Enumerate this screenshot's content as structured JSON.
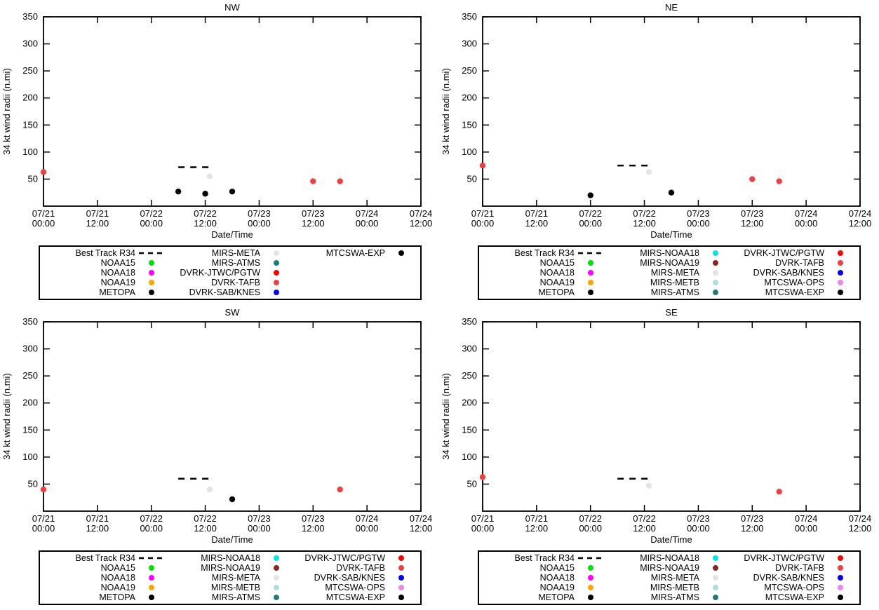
{
  "colors": {
    "NOAA15": "#00e000",
    "NOAA18": "#ff00ff",
    "NOAA19": "#ffa500",
    "METOPA": "#000000",
    "MIRS-NOAA18": "#00e5ee",
    "MIRS-NOAA19": "#8b2323",
    "MIRS-META": "#e4e4e4",
    "MIRS-METB": "#b0dcdc",
    "MIRS-ATMS": "#1e7b7b",
    "DVRK-JTWC/PGTW": "#ff0000",
    "DVRK-TAFB": "#ee4040",
    "DVRK-SAB/KNES": "#0000ee",
    "MTCSWA-OPS": "#ee82ee",
    "MTCSWA-EXP": "#000000",
    "best_track": "#000000",
    "axis": "#000000"
  },
  "axis": {
    "ylabel": "34 kt wind radii (n.mi)",
    "xlabel": "Date/Time",
    "ylim": [
      0,
      350
    ],
    "yticks": [
      50,
      100,
      150,
      200,
      250,
      300,
      350
    ],
    "xlim_hours": [
      0,
      84
    ],
    "grid": false,
    "xticks": [
      {
        "hour": 0,
        "date": "07/21",
        "time": "00:00"
      },
      {
        "hour": 12,
        "date": "07/21",
        "time": "12:00"
      },
      {
        "hour": 24,
        "date": "07/22",
        "time": "00:00"
      },
      {
        "hour": 36,
        "date": "07/22",
        "time": "12:00"
      },
      {
        "hour": 48,
        "date": "07/23",
        "time": "00:00"
      },
      {
        "hour": 60,
        "date": "07/23",
        "time": "12:00"
      },
      {
        "hour": 72,
        "date": "07/24",
        "time": "00:00"
      },
      {
        "hour": 84,
        "date": "07/24",
        "time": "12:00"
      }
    ]
  },
  "chart_data": [
    {
      "type": "scatter",
      "title": "NW",
      "ylabel": "34 kt wind radii (n.mi)",
      "xlabel": "Date/Time",
      "ylim": [
        0,
        350
      ],
      "best_track_dashed": {
        "x_hours": [
          30,
          37
        ],
        "y": 72
      },
      "points": [
        {
          "series": "DVRK-TAFB",
          "hour": 0,
          "y": 63
        },
        {
          "series": "MTCSWA-EXP",
          "hour": 30,
          "y": 27
        },
        {
          "series": "MTCSWA-EXP",
          "hour": 36,
          "y": 23
        },
        {
          "series": "MIRS-META",
          "hour": 37,
          "y": 55
        },
        {
          "series": "MTCSWA-EXP",
          "hour": 42,
          "y": 27
        },
        {
          "series": "DVRK-TAFB",
          "hour": 60,
          "y": 46
        },
        {
          "series": "DVRK-TAFB",
          "hour": 66,
          "y": 46
        }
      ],
      "legend_columns": [
        [
          {
            "label": "Best Track R34",
            "marker": "dash"
          },
          {
            "label": "NOAA15",
            "series": "NOAA15"
          },
          {
            "label": "NOAA18",
            "series": "NOAA18"
          },
          {
            "label": "NOAA19",
            "series": "NOAA19"
          },
          {
            "label": "METOPA",
            "series": "METOPA"
          }
        ],
        [
          {
            "label": "MIRS-META",
            "series": "MIRS-META"
          },
          {
            "label": "MIRS-ATMS",
            "series": "MIRS-ATMS"
          },
          {
            "label": "DVRK-JTWC/PGTW",
            "series": "DVRK-JTWC/PGTW"
          },
          {
            "label": "DVRK-TAFB",
            "series": "DVRK-TAFB"
          },
          {
            "label": "DVRK-SAB/KNES",
            "series": "DVRK-SAB/KNES"
          }
        ],
        [
          {
            "label": "MTCSWA-EXP",
            "series": "MTCSWA-EXP"
          }
        ]
      ]
    },
    {
      "type": "scatter",
      "title": "NE",
      "ylabel": "34 kt wind radii (n.mi)",
      "xlabel": "Date/Time",
      "ylim": [
        0,
        350
      ],
      "best_track_dashed": {
        "x_hours": [
          30,
          37
        ],
        "y": 75
      },
      "points": [
        {
          "series": "DVRK-TAFB",
          "hour": 0,
          "y": 75
        },
        {
          "series": "MTCSWA-EXP",
          "hour": 24,
          "y": 20
        },
        {
          "series": "MIRS-META",
          "hour": 37,
          "y": 63
        },
        {
          "series": "MTCSWA-EXP",
          "hour": 42,
          "y": 25
        },
        {
          "series": "DVRK-TAFB",
          "hour": 60,
          "y": 50
        },
        {
          "series": "DVRK-TAFB",
          "hour": 66,
          "y": 46
        }
      ],
      "legend_columns": [
        [
          {
            "label": "Best Track R34",
            "marker": "dash"
          },
          {
            "label": "NOAA15",
            "series": "NOAA15"
          },
          {
            "label": "NOAA18",
            "series": "NOAA18"
          },
          {
            "label": "NOAA19",
            "series": "NOAA19"
          },
          {
            "label": "METOPA",
            "series": "METOPA"
          }
        ],
        [
          {
            "label": "MIRS-NOAA18",
            "series": "MIRS-NOAA18"
          },
          {
            "label": "MIRS-NOAA19",
            "series": "MIRS-NOAA19"
          },
          {
            "label": "MIRS-META",
            "series": "MIRS-META"
          },
          {
            "label": "MIRS-METB",
            "series": "MIRS-METB"
          },
          {
            "label": "MIRS-ATMS",
            "series": "MIRS-ATMS"
          }
        ],
        [
          {
            "label": "DVRK-JTWC/PGTW",
            "series": "DVRK-JTWC/PGTW"
          },
          {
            "label": "DVRK-TAFB",
            "series": "DVRK-TAFB"
          },
          {
            "label": "DVRK-SAB/KNES",
            "series": "DVRK-SAB/KNES"
          },
          {
            "label": "MTCSWA-OPS",
            "series": "MTCSWA-OPS"
          },
          {
            "label": "MTCSWA-EXP",
            "series": "MTCSWA-EXP"
          }
        ]
      ]
    },
    {
      "type": "scatter",
      "title": "SW",
      "ylabel": "34 kt wind radii (n.mi)",
      "xlabel": "Date/Time",
      "ylim": [
        0,
        350
      ],
      "best_track_dashed": {
        "x_hours": [
          30,
          37
        ],
        "y": 60
      },
      "points": [
        {
          "series": "DVRK-TAFB",
          "hour": 0,
          "y": 40
        },
        {
          "series": "MIRS-META",
          "hour": 37,
          "y": 40
        },
        {
          "series": "MTCSWA-EXP",
          "hour": 42,
          "y": 22
        },
        {
          "series": "DVRK-TAFB",
          "hour": 66,
          "y": 40
        }
      ],
      "legend_columns": [
        [
          {
            "label": "Best Track R34",
            "marker": "dash"
          },
          {
            "label": "NOAA15",
            "series": "NOAA15"
          },
          {
            "label": "NOAA18",
            "series": "NOAA18"
          },
          {
            "label": "NOAA19",
            "series": "NOAA19"
          },
          {
            "label": "METOPA",
            "series": "METOPA"
          }
        ],
        [
          {
            "label": "MIRS-NOAA18",
            "series": "MIRS-NOAA18"
          },
          {
            "label": "MIRS-NOAA19",
            "series": "MIRS-NOAA19"
          },
          {
            "label": "MIRS-META",
            "series": "MIRS-META"
          },
          {
            "label": "MIRS-METB",
            "series": "MIRS-METB"
          },
          {
            "label": "MIRS-ATMS",
            "series": "MIRS-ATMS"
          }
        ],
        [
          {
            "label": "DVRK-JTWC/PGTW",
            "series": "DVRK-JTWC/PGTW"
          },
          {
            "label": "DVRK-TAFB",
            "series": "DVRK-TAFB"
          },
          {
            "label": "DVRK-SAB/KNES",
            "series": "DVRK-SAB/KNES"
          },
          {
            "label": "MTCSWA-OPS",
            "series": "MTCSWA-OPS"
          },
          {
            "label": "MTCSWA-EXP",
            "series": "MTCSWA-EXP"
          }
        ]
      ]
    },
    {
      "type": "scatter",
      "title": "SE",
      "ylabel": "34 kt wind radii (n.mi)",
      "xlabel": "Date/Time",
      "ylim": [
        0,
        350
      ],
      "best_track_dashed": {
        "x_hours": [
          30,
          37
        ],
        "y": 60
      },
      "points": [
        {
          "series": "DVRK-TAFB",
          "hour": 0,
          "y": 63
        },
        {
          "series": "MIRS-META",
          "hour": 37,
          "y": 47
        },
        {
          "series": "DVRK-TAFB",
          "hour": 66,
          "y": 36
        }
      ],
      "legend_columns": [
        [
          {
            "label": "Best Track R34",
            "marker": "dash"
          },
          {
            "label": "NOAA15",
            "series": "NOAA15"
          },
          {
            "label": "NOAA18",
            "series": "NOAA18"
          },
          {
            "label": "NOAA19",
            "series": "NOAA19"
          },
          {
            "label": "METOPA",
            "series": "METOPA"
          }
        ],
        [
          {
            "label": "MIRS-NOAA18",
            "series": "MIRS-NOAA18"
          },
          {
            "label": "MIRS-NOAA19",
            "series": "MIRS-NOAA19"
          },
          {
            "label": "MIRS-META",
            "series": "MIRS-META"
          },
          {
            "label": "MIRS-METB",
            "series": "MIRS-METB"
          },
          {
            "label": "MIRS-ATMS",
            "series": "MIRS-ATMS"
          }
        ],
        [
          {
            "label": "DVRK-JTWC/PGTW",
            "series": "DVRK-JTWC/PGTW"
          },
          {
            "label": "DVRK-TAFB",
            "series": "DVRK-TAFB"
          },
          {
            "label": "DVRK-SAB/KNES",
            "series": "DVRK-SAB/KNES"
          },
          {
            "label": "MTCSWA-OPS",
            "series": "MTCSWA-OPS"
          },
          {
            "label": "MTCSWA-EXP",
            "series": "MTCSWA-EXP"
          }
        ]
      ]
    }
  ]
}
